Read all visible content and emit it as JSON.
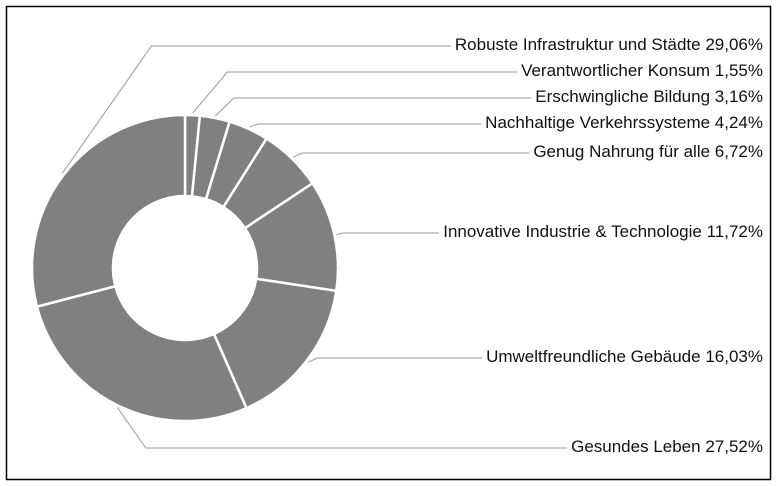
{
  "chart_data": {
    "type": "donut",
    "categories": [
      "Verantwortlicher Konsum",
      "Erschwingliche Bildung",
      "Nachhaltige Verkehrssysteme",
      "Genug Nahrung für alle",
      "Innovative Industrie & Technologie",
      "Umweltfreundliche Gebäude",
      "Gesundes Leben",
      "Robuste Infrastruktur und Städte"
    ],
    "values": [
      1.55,
      3.16,
      4.24,
      6.72,
      11.72,
      16.03,
      27.52,
      29.06
    ],
    "value_labels": [
      "1,55%",
      "3,16%",
      "4,24%",
      "6,72%",
      "11,72%",
      "16,03%",
      "27,52%",
      "29,06%"
    ],
    "color": "#808080"
  }
}
